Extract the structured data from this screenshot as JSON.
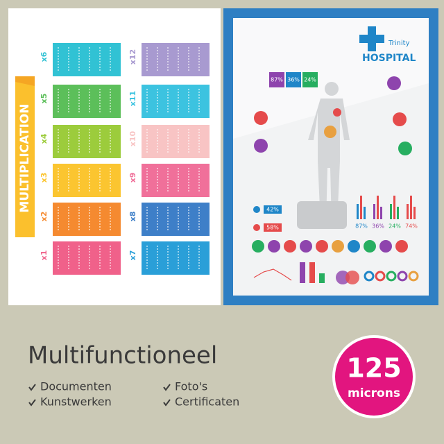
{
  "left_poster": {
    "title": "MULTIPLICATION",
    "tables": [
      "x1",
      "x2",
      "x3",
      "x4",
      "x5",
      "x6",
      "x7",
      "x8",
      "x9",
      "x10",
      "x11",
      "x12"
    ]
  },
  "right_poster": {
    "brand": "Trinity",
    "name": "HOSPITAL",
    "stats": [
      "87%",
      "36%",
      "24%"
    ],
    "gender": [
      "42%",
      "58%"
    ],
    "bars": [
      "87%",
      "36%",
      "24%",
      "74%"
    ]
  },
  "caption": {
    "heading": "Multifunctioneel",
    "features": [
      "Documenten",
      "Foto's",
      "Kunstwerken",
      "Certificaten"
    ]
  },
  "badge": {
    "number": "125",
    "unit": "microns"
  }
}
